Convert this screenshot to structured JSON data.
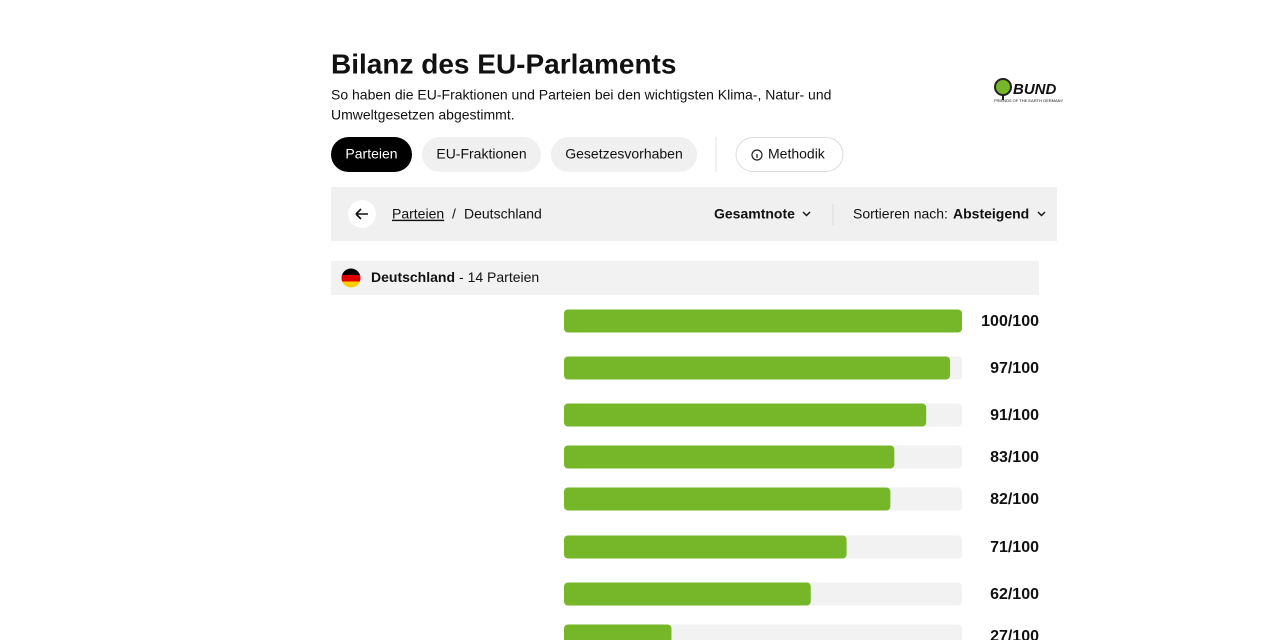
{
  "header": {
    "title": "Bilanz des EU-Parlaments",
    "subtitle_lines": [
      "So haben die EU-Fraktionen und Parteien bei den wichtigsten Klima-, Natur- und",
      "Umweltgesetzen abgestimmt."
    ],
    "logo": {
      "name": "BUND",
      "tagline": "FRIENDS OF THE EARTH GERMANY"
    }
  },
  "tabs": [
    "Parteien",
    "EU-Fraktionen",
    "Gesetzesvorhaben"
  ],
  "method_button": "Methodik",
  "toolbar": {
    "breadcrumb": [
      "Parteien",
      "/",
      "Deutschland"
    ],
    "metric": "Gesamtnote",
    "sort_label": "Sortieren nach:",
    "sort_value": "Absteigend"
  },
  "country": {
    "name": "Deutschland",
    "count_label": "- 14 Parteien"
  },
  "ranking": {
    "xlim": [
      0,
      100
    ],
    "color": "#76b72a",
    "values": [
      100,
      97,
      91,
      83,
      82,
      71,
      62,
      27
    ],
    "value_labels": [
      "100/100",
      "97/100",
      "91/100",
      "83/100",
      "82/100",
      "71/100",
      "62/100",
      "27/100"
    ]
  }
}
